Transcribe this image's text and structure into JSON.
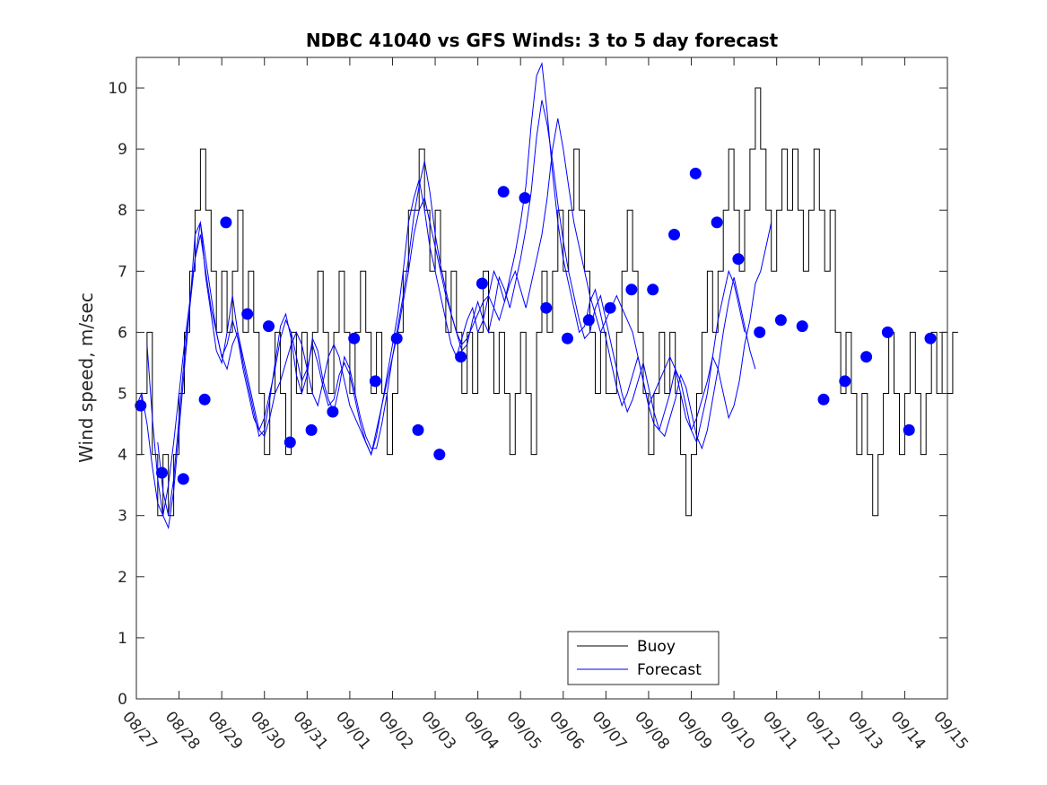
{
  "chart_data": {
    "type": "line",
    "title": "NDBC 41040 vs GFS Winds: 3 to 5 day forecast",
    "xlabel": "",
    "ylabel": "Wind speed, m/sec",
    "xlim_days": [
      0,
      19
    ],
    "ylim": [
      0,
      10.5
    ],
    "yticks": [
      0,
      1,
      2,
      3,
      4,
      5,
      6,
      7,
      8,
      9,
      10
    ],
    "xtick_labels": [
      "08/27",
      "08/28",
      "08/29",
      "08/30",
      "08/31",
      "09/01",
      "09/02",
      "09/03",
      "09/04",
      "09/05",
      "09/06",
      "09/07",
      "09/08",
      "09/09",
      "09/10",
      "09/11",
      "09/12",
      "09/13",
      "09/14",
      "09/15"
    ],
    "legend": {
      "location": "bottom-center",
      "entries": [
        {
          "label": "Buoy",
          "color": "#000000"
        },
        {
          "label": "Forecast",
          "color": "#0000ff"
        }
      ]
    },
    "series": [
      {
        "name": "Buoy",
        "color": "#000000",
        "step_hours": 3,
        "values": [
          4,
          5,
          6,
          4,
          3,
          4,
          3,
          4,
          5,
          6,
          7,
          8,
          9,
          8,
          7,
          6,
          7,
          6,
          7,
          8,
          6,
          7,
          6,
          5,
          4,
          5,
          6,
          5,
          4,
          6,
          5,
          6,
          5,
          6,
          7,
          6,
          5,
          6,
          7,
          6,
          5,
          6,
          7,
          6,
          5,
          6,
          5,
          4,
          5,
          6,
          7,
          8,
          8,
          9,
          8,
          7,
          8,
          7,
          6,
          7,
          6,
          5,
          6,
          5,
          6,
          7,
          6,
          5,
          6,
          5,
          4,
          5,
          6,
          5,
          4,
          6,
          7,
          6,
          7,
          8,
          7,
          8,
          9,
          8,
          7,
          6,
          5,
          6,
          5,
          5,
          6,
          7,
          8,
          7,
          6,
          5,
          4,
          5,
          6,
          5,
          6,
          5,
          4,
          3,
          4,
          5,
          6,
          7,
          6,
          7,
          8,
          9,
          8,
          7,
          8,
          9,
          10,
          9,
          8,
          7,
          8,
          9,
          8,
          9,
          8,
          7,
          8,
          9,
          8,
          7,
          8,
          6,
          5,
          6,
          5,
          4,
          5,
          4,
          3,
          4,
          5,
          6,
          5,
          4,
          5,
          6,
          5,
          4,
          5,
          6,
          5,
          6,
          5,
          6
        ]
      }
    ],
    "forecast_runs": [
      {
        "name": "Forecast run 1",
        "start_hour": 0,
        "step_hours": 3,
        "values": [
          4.8,
          5.0,
          4.5,
          3.8,
          3.2,
          3.0,
          3.5,
          4.2,
          5.0,
          5.8,
          6.5,
          7.2,
          7.6,
          7.0,
          6.4,
          6.0,
          5.6,
          5.4,
          5.8,
          6.0,
          5.6,
          5.2,
          4.8,
          4.4,
          4.3,
          4.6,
          5.0,
          5.2,
          5.5,
          5.8,
          6.0,
          5.8,
          5.4,
          5.0,
          4.8,
          5.2,
          5.6,
          5.8,
          5.6,
          5.2,
          4.8,
          4.6,
          4.4,
          4.2,
          4.0,
          4.4,
          4.8,
          5.2,
          5.6,
          6.0,
          6.5,
          7.0,
          7.6,
          8.0,
          8.2,
          7.8,
          7.4,
          7.0,
          6.6,
          6.3,
          6.0,
          5.8,
          5.9,
          6.1,
          6.3,
          6.5,
          6.6,
          6.4,
          6.2,
          6.5,
          6.8,
          7.0,
          6.7,
          6.4,
          6.8,
          7.2,
          7.6,
          8.2,
          9.0,
          9.5,
          9.0,
          8.4,
          7.8,
          7.4,
          7.0,
          6.6,
          6.3,
          6.0,
          6.2,
          6.4,
          6.6,
          6.4,
          6.2,
          6.0,
          5.6,
          5.2,
          4.8,
          5.0,
          5.2,
          5.4,
          5.6,
          5.4,
          5.0,
          4.6,
          4.4,
          4.6,
          4.9,
          5.2,
          5.6,
          5.4,
          5.0,
          4.6,
          4.8,
          5.2,
          5.8,
          6.2,
          6.8,
          7.0,
          7.4,
          7.8
        ]
      },
      {
        "name": "Forecast run 2",
        "start_hour": 6,
        "step_hours": 3,
        "values": [
          5.8,
          4.6,
          3.6,
          3.0,
          2.8,
          3.4,
          4.4,
          5.4,
          6.4,
          7.2,
          7.8,
          7.2,
          6.6,
          6.0,
          5.6,
          5.8,
          6.2,
          5.9,
          5.4,
          5.0,
          4.6,
          4.4,
          4.6,
          5.0,
          5.4,
          5.9,
          6.2,
          6.0,
          5.6,
          5.2,
          5.4,
          5.8,
          5.5,
          5.1,
          4.8,
          4.9,
          5.3,
          5.5,
          5.3,
          4.9,
          4.5,
          4.2,
          4.0,
          4.3,
          4.8,
          5.3,
          5.8,
          6.3,
          7.0,
          7.8,
          8.2,
          8.5,
          8.0,
          7.4,
          7.0,
          6.6,
          6.2,
          5.8,
          5.6,
          5.9,
          6.2,
          6.4,
          6.0,
          6.2,
          6.6,
          7.0,
          6.8,
          6.5,
          6.9,
          7.3,
          7.8,
          8.4,
          9.4,
          10.2,
          10.4,
          9.6,
          8.6,
          7.8,
          7.2,
          6.8,
          6.4,
          6.0,
          6.1,
          6.5,
          6.7,
          6.3,
          5.9,
          5.5,
          5.1,
          4.8,
          5.0,
          5.3,
          5.6,
          5.2,
          4.8,
          4.5,
          4.4,
          4.7,
          5.0,
          5.4,
          5.2,
          4.8,
          4.4,
          4.2,
          4.6,
          5.0,
          5.6,
          6.2,
          6.6,
          7.0,
          6.8,
          6.4,
          6.0
        ]
      },
      {
        "name": "Forecast run 3",
        "start_hour": 12,
        "step_hours": 3,
        "values": [
          4.2,
          3.4,
          3.0,
          3.6,
          4.6,
          5.6,
          6.4,
          7.6,
          7.8,
          6.9,
          6.3,
          5.7,
          5.5,
          6.0,
          6.6,
          6.0,
          5.5,
          5.1,
          4.7,
          4.3,
          4.4,
          4.9,
          5.5,
          6.1,
          6.3,
          5.9,
          5.3,
          5.0,
          5.3,
          5.9,
          5.7,
          5.2,
          4.9,
          4.7,
          5.1,
          5.6,
          5.4,
          5.0,
          4.6,
          4.3,
          4.1,
          4.1,
          4.5,
          5.0,
          5.6,
          6.1,
          6.6,
          7.2,
          7.9,
          8.4,
          8.8,
          8.3,
          7.6,
          7.1,
          6.7,
          6.3,
          6.0,
          5.7,
          5.8,
          6.2,
          6.5,
          6.2,
          6.0,
          6.4,
          6.9,
          6.7,
          6.4,
          6.8,
          7.2,
          7.7,
          8.3,
          9.2,
          9.8,
          9.4,
          8.8,
          8.1,
          7.5,
          7.0,
          6.6,
          6.2,
          5.9,
          6.0,
          6.4,
          6.6,
          6.2,
          5.8,
          5.4,
          5.0,
          4.7,
          4.9,
          5.2,
          5.5,
          5.1,
          4.7,
          4.4,
          4.3,
          4.6,
          4.9,
          5.3,
          5.1,
          4.7,
          4.3,
          4.1,
          4.4,
          4.9,
          5.4,
          6.0,
          6.5,
          6.9,
          6.5,
          6.1,
          5.7,
          5.4
        ]
      }
    ],
    "forecast_markers": {
      "name": "Forecast (daily marks)",
      "color": "#0000ff",
      "x_days": [
        0.1,
        0.6,
        1.1,
        1.6,
        2.1,
        2.6,
        3.1,
        3.6,
        4.1,
        4.6,
        5.1,
        5.6,
        6.1,
        6.6,
        7.1,
        7.6,
        8.1,
        8.6,
        9.1,
        9.6,
        10.1,
        10.6,
        11.1,
        11.6,
        12.1,
        12.6,
        13.1,
        13.6,
        14.1,
        14.6,
        15.1,
        15.6,
        16.1,
        16.6,
        17.1,
        17.6,
        18.1,
        18.6
      ],
      "values": [
        4.8,
        3.7,
        3.6,
        4.9,
        7.8,
        6.3,
        6.1,
        4.2,
        4.4,
        4.7,
        5.9,
        5.2,
        5.9,
        4.4,
        4.0,
        5.6,
        6.8,
        8.3,
        8.2,
        6.4,
        5.9,
        6.2,
        6.4,
        6.7,
        6.7,
        7.6,
        8.6,
        7.8,
        7.2,
        6.0,
        6.2,
        6.1,
        4.9,
        5.2,
        5.6,
        6.0,
        4.4,
        5.9
      ]
    }
  }
}
